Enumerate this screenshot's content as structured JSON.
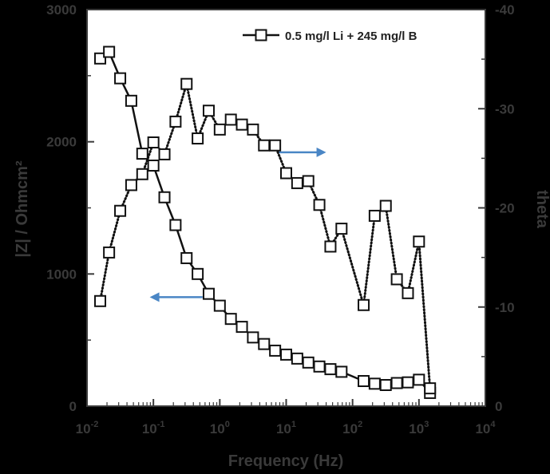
{
  "chart_data": {
    "type": "scatter",
    "title": "",
    "xlabel": "Frequency (Hz)",
    "ylabel_left": "|Z| / Ohmcm²",
    "ylabel_right": "theta",
    "x_scale": "log",
    "xlim": [
      0.01,
      10000
    ],
    "ylim_left": [
      0,
      3000
    ],
    "ylim_right": [
      0,
      40
    ],
    "x_ticks": [
      {
        "value": 0.01,
        "base": "10",
        "exp": "-2"
      },
      {
        "value": 0.1,
        "base": "10",
        "exp": "-1"
      },
      {
        "value": 1,
        "base": "10",
        "exp": "0"
      },
      {
        "value": 10,
        "base": "10",
        "exp": "1"
      },
      {
        "value": 100,
        "base": "10",
        "exp": "2"
      },
      {
        "value": 1000,
        "base": "10",
        "exp": "3"
      },
      {
        "value": 10000,
        "base": "10",
        "exp": "4"
      }
    ],
    "y_left_ticks": [
      {
        "value": 0,
        "label": "0"
      },
      {
        "value": 1000,
        "label": "1000"
      },
      {
        "value": 2000,
        "label": "2000"
      },
      {
        "value": 3000,
        "label": "3000"
      }
    ],
    "y_right_ticks": [
      {
        "value": 0,
        "label": "0"
      },
      {
        "value": 10,
        "label": "-10"
      },
      {
        "value": 20,
        "label": "-20"
      },
      {
        "value": 30,
        "label": "-30"
      },
      {
        "value": 40,
        "label": "-40"
      }
    ],
    "legend": {
      "position": "top-right",
      "label": "0.5 mg/l Li + 245 mg/l B"
    },
    "grid": false,
    "series": [
      {
        "name": "0.5 mg/l Li + 245 mg/l B",
        "axis": "left",
        "quantity": "|Z|",
        "color": "#111111",
        "marker": "square",
        "line_style": "solid",
        "x": [
          0.0158,
          0.0215,
          0.0316,
          0.0464,
          0.0681,
          0.1,
          0.1468,
          0.2154,
          0.3162,
          0.4642,
          0.6813,
          1,
          1.468,
          2.154,
          3.162,
          4.642,
          6.813,
          10,
          14.68,
          21.54,
          31.62,
          46.42,
          68.13,
          146.8,
          215.4,
          316.2,
          464.2,
          681.3,
          1000,
          1468
        ],
        "y": [
          2630,
          2680,
          2480,
          2310,
          1910,
          1820,
          1580,
          1370,
          1120,
          1000,
          850,
          760,
          660,
          600,
          520,
          470,
          420,
          390,
          360,
          330,
          300,
          280,
          260,
          190,
          170,
          160,
          175,
          180,
          200,
          100
        ]
      },
      {
        "name": "theta",
        "axis": "right",
        "quantity": "-theta",
        "color": "#111111",
        "marker": "square",
        "line_style": "dotted",
        "x": [
          0.0158,
          0.0215,
          0.0316,
          0.0464,
          0.0681,
          0.1,
          0.1468,
          0.2154,
          0.3162,
          0.4642,
          0.6813,
          1,
          1.468,
          2.154,
          3.162,
          4.642,
          6.813,
          10,
          14.68,
          21.54,
          31.62,
          46.42,
          68.13,
          146.8,
          215.4,
          316.2,
          464.2,
          681.3,
          1000,
          1468
        ],
        "y": [
          10.6,
          15.5,
          19.7,
          22.3,
          23.4,
          26.6,
          25.4,
          28.7,
          32.5,
          27.0,
          29.8,
          27.9,
          28.9,
          28.4,
          27.9,
          26.3,
          26.3,
          23.5,
          22.5,
          22.7,
          20.3,
          16.1,
          17.9,
          10.2,
          19.2,
          20.2,
          12.8,
          11.4,
          16.6,
          1.8
        ]
      }
    ],
    "annotations": [
      {
        "type": "arrow",
        "direction": "right",
        "color": "#4a86c5",
        "from": {
          "x": 7.5,
          "y_right": 25.6
        },
        "to": {
          "x": 40,
          "y_right": 25.6
        }
      },
      {
        "type": "arrow",
        "direction": "left",
        "color": "#4a86c5",
        "from": {
          "x": 0.55,
          "y_left": 825
        },
        "to": {
          "x": 0.088,
          "y_left": 825
        }
      }
    ]
  }
}
